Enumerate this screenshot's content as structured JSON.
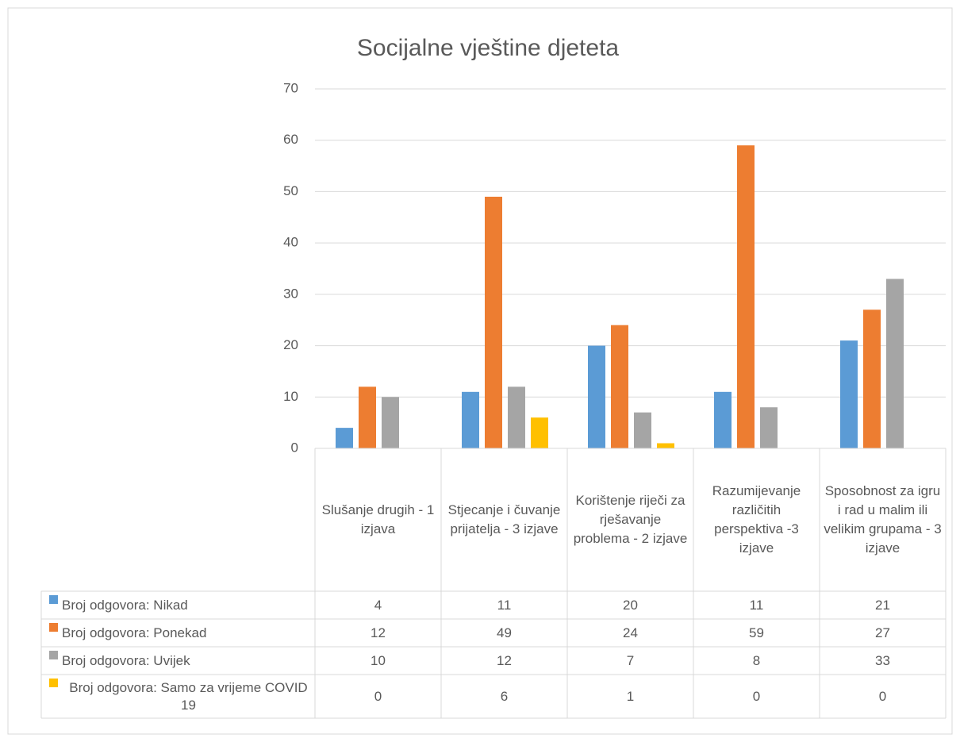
{
  "chart_data": {
    "type": "bar",
    "title": "Socijalne vještine djeteta",
    "categories": [
      "Slušanje drugih - 1 izjava",
      "Stjecanje i čuvanje prijatelja - 3 izjave",
      "Korištenje riječi za rješavanje problema - 2 izjave",
      "Razumijevanje različitih perspektiva -3 izjave",
      "Sposobnost za igru i rad u malim ili velikim grupama - 3 izjave"
    ],
    "series": [
      {
        "name": "Broj odgovora: Nikad",
        "color": "#5b9bd5",
        "values": [
          4,
          11,
          20,
          11,
          21
        ]
      },
      {
        "name": "Broj odgovora: Ponekad",
        "color": "#ed7d31",
        "values": [
          12,
          49,
          24,
          59,
          27
        ]
      },
      {
        "name": "Broj odgovora: Uvijek",
        "color": "#a5a5a5",
        "values": [
          10,
          12,
          7,
          8,
          33
        ]
      },
      {
        "name": "Broj odgovora: Samo za vrijeme COVID 19",
        "color": "#ffc000",
        "values": [
          0,
          6,
          1,
          0,
          0
        ]
      }
    ],
    "ylim": [
      0,
      70
    ],
    "yticks": [
      0,
      10,
      20,
      30,
      40,
      50,
      60,
      70
    ],
    "grid": true,
    "data_table": true
  }
}
